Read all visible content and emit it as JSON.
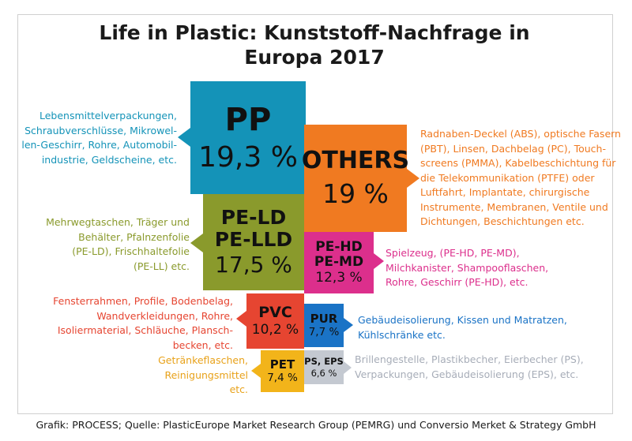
{
  "title_line1": "Life in Plastic: Kunststoff-Nachfrage in",
  "title_line2": "Europa 2017",
  "footer": "Grafik: PROCESS; Quelle: PlasticEurope Market Research Group (PEMRG) und Conversio Merket & Strategy GmbH",
  "chart_data": {
    "type": "bar",
    "title": "Life in Plastic: Kunststoff-Nachfrage in Europa 2017",
    "unit": "%",
    "categories": [
      "PP",
      "OTHERS",
      "PE-LD PE-LLD",
      "PE-HD PE-MD",
      "PVC",
      "PUR",
      "PET",
      "PS, EPS"
    ],
    "values": [
      19.3,
      19.0,
      17.5,
      12.3,
      10.2,
      7.7,
      7.4,
      6.6
    ],
    "colors": [
      "#1493b8",
      "#f07a21",
      "#8a9a2c",
      "#dc2f8c",
      "#e64531",
      "#1a73c6",
      "#f2b41a",
      "#c4c9d1"
    ]
  },
  "segments": {
    "pp": {
      "name": "PP",
      "pct": "19,3 %",
      "color": "#1493b8",
      "text_color": "#1493b8",
      "desc": [
        "Lebensmittelverpackungen,",
        "Schraubverschlüsse, Mikrowel-",
        "len-Geschirr, Rohre, Automobil-",
        "industrie, Geldscheine, etc."
      ]
    },
    "others": {
      "name": "OTHERS",
      "pct": "19 %",
      "color": "#f07a21",
      "text_color": "#f07a21",
      "desc": [
        "Radnaben-Deckel (ABS), optische Fasern",
        "(PBT), Linsen, Dachbelag (PC), Touch-",
        "screens (PMMA), Kabelbeschichtung für",
        "die Telekommunikation (PTFE) oder",
        "Luftfahrt, Implantate, chirurgische",
        "Instrumente, Membranen, Ventile und",
        "Dichtungen, Beschichtungen etc."
      ]
    },
    "peld": {
      "name1": "PE-LD",
      "name2": "PE-LLD",
      "pct": "17,5 %",
      "color": "#8a9a2c",
      "text_color": "#8a9a2c",
      "desc": [
        "Mehrwegtaschen, Träger und",
        "Behälter, Pfalnzenfolie",
        "(PE-LD), Frischhaltefolie",
        "(PE-LL) etc."
      ]
    },
    "pehd": {
      "name1": "PE-HD",
      "name2": "PE-MD",
      "pct": "12,3 %",
      "color": "#dc2f8c",
      "text_color": "#dc2f8c",
      "desc": [
        "Spielzeug, (PE-HD, PE-MD),",
        "Milchkanister, Shampooflaschen,",
        "Rohre, Geschirr (PE-HD), etc."
      ]
    },
    "pvc": {
      "name": "PVC",
      "pct": "10,2 %",
      "color": "#e64531",
      "text_color": "#e64531",
      "desc": [
        "Fensterrahmen, Profile, Bodenbelag,",
        "Wandverkleidungen, Rohre,",
        "Isoliermaterial, Schläuche, Plansch-",
        "becken, etc."
      ]
    },
    "pur": {
      "name": "PUR",
      "pct": "7,7 %",
      "color": "#1a73c6",
      "text_color": "#1a73c6",
      "desc": [
        "Gebäudeisolierung, Kissen und Matratzen,",
        "Kühlschränke etc."
      ]
    },
    "pet": {
      "name": "PET",
      "pct": "7,4 %",
      "color": "#f2b41a",
      "text_color": "#e8a21a",
      "desc": [
        "Getränkeflaschen,",
        "Reinigungsmittel",
        "etc."
      ]
    },
    "ps": {
      "name": "PS, EPS",
      "pct": "6,6 %",
      "color": "#c4c9d1",
      "text_color": "#a7adb8",
      "desc": [
        "Brillengestelle, Plastikbecher, Eierbecher (PS),",
        "Verpackungen, Gebäudeisolierung (EPS), etc."
      ]
    }
  }
}
